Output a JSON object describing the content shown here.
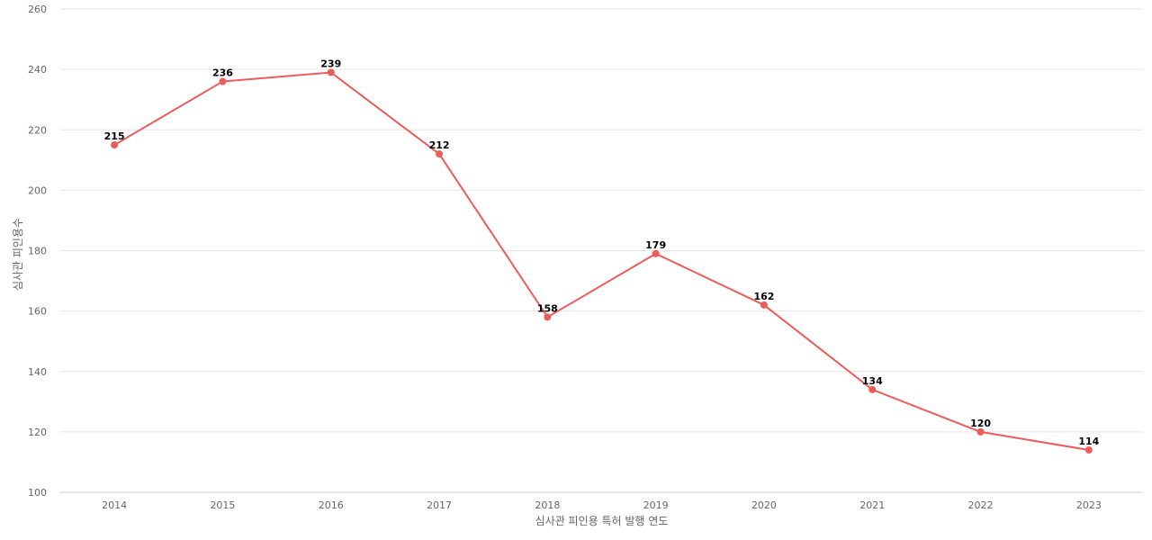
{
  "chart_data": {
    "type": "line",
    "title": "",
    "xlabel": "심사관 피인용 특허 발행 연도",
    "ylabel": "심사관 피인용수",
    "categories": [
      "2014",
      "2015",
      "2016",
      "2017",
      "2018",
      "2019",
      "2020",
      "2021",
      "2022",
      "2023"
    ],
    "series": [
      {
        "values": [
          215,
          236,
          239,
          212,
          158,
          179,
          162,
          134,
          120,
          114
        ],
        "color": "#ef5a5a"
      }
    ],
    "ylim": [
      100,
      260
    ],
    "yticks": [
      100,
      120,
      140,
      160,
      180,
      200,
      220,
      240,
      260
    ],
    "grid": true,
    "legend": "none",
    "data_labels": true
  }
}
